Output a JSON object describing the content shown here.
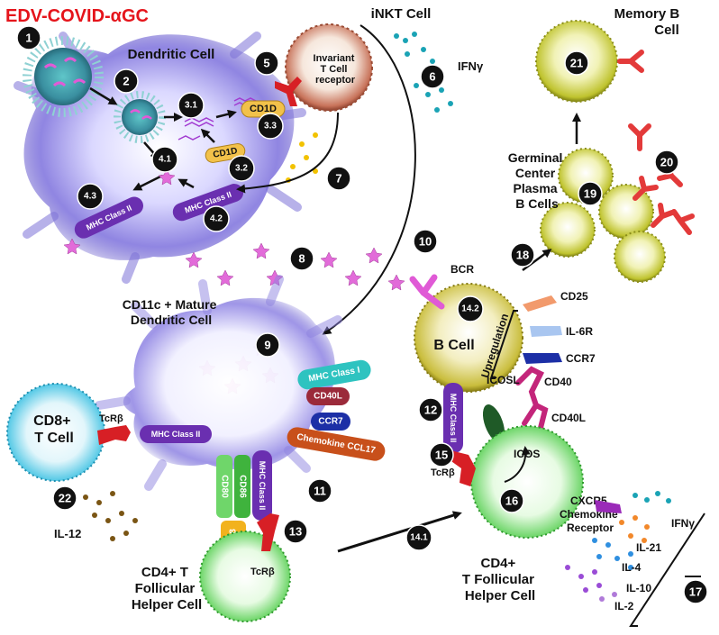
{
  "title": "EDV-COVID-αGC",
  "labels": {
    "dendritic_cell": "Dendritic Cell",
    "inkt_cell": "iNKT Cell",
    "invariant_tcr": "Invariant T Cell receptor",
    "ifn_gamma": "IFNγ",
    "memory_b_cell": "Memory B Cell",
    "germinal_center": "Germinal Center Plasma B Cells",
    "cd11c_mature_dc": "CD11c + Mature Dendritic Cell",
    "bcr": "BCR",
    "b_cell": "B Cell",
    "upregulation": "Upregulation",
    "cd25": "CD25",
    "il6r": "IL-6R",
    "ccr7_b": "CCR7",
    "icosl": "ICOSL",
    "cd40": "CD40",
    "cd40l_b": "CD40L",
    "icos": "ICOS",
    "tcrb_right": "TcRβ",
    "cd8_t_cell": "CD8+ T Cell",
    "tcrb_left": "TcRβ",
    "il12": "IL-12",
    "cd4_tfh_left": "CD4+ T Follicular Helper Cell",
    "tcrb_bottom": "TcRβ",
    "cd4_tfh_right": "CD4+ T Follicular Helper Cell",
    "cxcr5": "CXCR5 Chemokine Receptor",
    "ifn_gamma_2": "IFNγ",
    "il21": "IL-21",
    "il4": "IL-4",
    "il10": "IL-10",
    "il2": "IL-2"
  },
  "receptors": {
    "cd1d_a": "CD1D",
    "cd1d_b": "CD1D",
    "mhc2_a": "MHC Class II",
    "mhc2_b": "MHC Class II",
    "mhc1": "MHC Class I",
    "cd40l_dc": "CD40L",
    "ccr7_dc": "CCR7",
    "ccl17": "Chemokine CCL17",
    "mhc2_cd8": "MHC Class II",
    "cd80": "CD80",
    "cd86": "CD86",
    "mhc2_dc_bottom": "MHC Class II",
    "cd28": "CD28",
    "mhc2_bcell": "MHC Class II"
  },
  "steps": [
    "1",
    "2",
    "3.1",
    "3.2",
    "3.3",
    "4.1",
    "4.2",
    "4.3",
    "5",
    "6",
    "7",
    "8",
    "9",
    "10",
    "11",
    "12",
    "13",
    "14.1",
    "14.2",
    "15",
    "16",
    "17",
    "18",
    "19",
    "20",
    "21",
    "22"
  ],
  "colors": {
    "title": "#e5141b",
    "dc_purple": "#8a7fe0",
    "inkt_brown": "#c8735a",
    "memory_yellow": "#c9cf3a",
    "b_cell_yellow": "#d2c94a",
    "cd8_blue": "#56c9e6",
    "tfh_green": "#6fd66a",
    "mhc2_purple": "#6a2fb0",
    "mhc1_teal": "#2ec3c0",
    "cd40l_maroon": "#9b2a3a",
    "ccr7_navy": "#1c2fa6",
    "ccl17_orange": "#c8501b",
    "cd1d_gold": "#f2c14a",
    "antibody_red": "#e33a3a",
    "tcr_red": "#d71f25",
    "bcr_pink": "#e05ad6",
    "antigen_pink": "#e26bd9",
    "ifn_teal": "#1aa3b5",
    "il12_brown": "#7a5514",
    "cd25_salmon": "#f29a6c",
    "il6r_blue": "#a9c6f0",
    "cd40_magenta": "#c3257a",
    "icos_magenta": "#c3257a",
    "icosl_green": "#1f5a27",
    "cxcr5_purple": "#9a2ab8",
    "il21_orange": "#f2882a",
    "il4_blue": "#2f8fe0",
    "il10_purple": "#9a4cd6",
    "il2_violet": "#b07ad9"
  }
}
